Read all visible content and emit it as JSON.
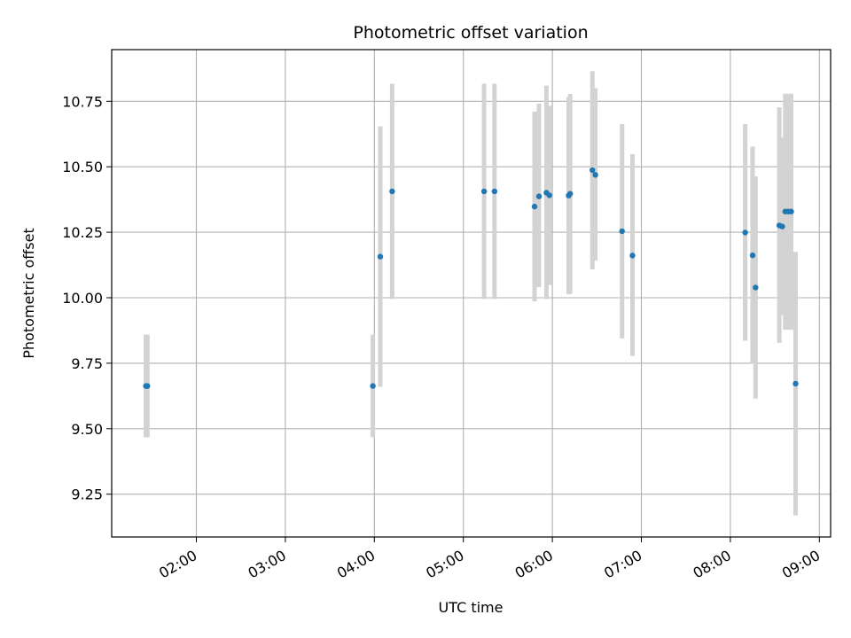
{
  "chart_data": {
    "type": "scatter",
    "title": "Photometric offset variation",
    "xlabel": "UTC time",
    "ylabel": "Photometric offset",
    "x_ticks": [
      "02:00",
      "03:00",
      "04:00",
      "05:00",
      "06:00",
      "07:00",
      "08:00",
      "09:00"
    ],
    "x_tick_values": [
      120,
      180,
      240,
      300,
      360,
      420,
      480,
      540
    ],
    "y_ticks": [
      "9.25",
      "9.50",
      "9.75",
      "10.00",
      "10.25",
      "10.50",
      "10.75"
    ],
    "y_tick_values": [
      9.25,
      9.5,
      9.75,
      10.0,
      10.25,
      10.5,
      10.75
    ],
    "grid": true,
    "series": [
      {
        "color": "#1f77b4",
        "error_color": "#d3d3d3",
        "points": [
          {
            "t": "01:26",
            "y": 9.663,
            "lo": 9.467,
            "hi": 9.859
          },
          {
            "t": "01:27",
            "y": 9.663,
            "lo": 9.467,
            "hi": 9.859
          },
          {
            "t": "03:59",
            "y": 9.663,
            "lo": 9.467,
            "hi": 9.859
          },
          {
            "t": "04:04",
            "y": 10.157,
            "lo": 9.66,
            "hi": 10.654
          },
          {
            "t": "04:12",
            "y": 10.406,
            "lo": 9.995,
            "hi": 10.817
          },
          {
            "t": "05:14",
            "y": 10.406,
            "lo": 9.995,
            "hi": 10.817
          },
          {
            "t": "05:21",
            "y": 10.406,
            "lo": 9.995,
            "hi": 10.817
          },
          {
            "t": "05:48",
            "y": 10.348,
            "lo": 9.986,
            "hi": 10.711
          },
          {
            "t": "05:51",
            "y": 10.387,
            "lo": 10.04,
            "hi": 10.741
          },
          {
            "t": "05:56",
            "y": 10.401,
            "lo": 9.995,
            "hi": 10.81
          },
          {
            "t": "05:58",
            "y": 10.391,
            "lo": 10.049,
            "hi": 10.733
          },
          {
            "t": "06:11",
            "y": 10.39,
            "lo": 10.013,
            "hi": 10.766
          },
          {
            "t": "06:12",
            "y": 10.397,
            "lo": 10.015,
            "hi": 10.778
          },
          {
            "t": "06:27",
            "y": 10.487,
            "lo": 10.108,
            "hi": 10.865
          },
          {
            "t": "06:29",
            "y": 10.469,
            "lo": 10.142,
            "hi": 10.8
          },
          {
            "t": "06:47",
            "y": 10.254,
            "lo": 9.845,
            "hi": 10.663
          },
          {
            "t": "06:54",
            "y": 10.161,
            "lo": 9.778,
            "hi": 10.548
          },
          {
            "t": "08:10",
            "y": 10.249,
            "lo": 9.836,
            "hi": 10.663
          },
          {
            "t": "08:15",
            "y": 10.162,
            "lo": 9.748,
            "hi": 10.577
          },
          {
            "t": "08:17",
            "y": 10.039,
            "lo": 9.615,
            "hi": 10.463
          },
          {
            "t": "08:33",
            "y": 10.276,
            "lo": 9.828,
            "hi": 10.727
          },
          {
            "t": "08:35",
            "y": 10.272,
            "lo": 9.934,
            "hi": 10.611
          },
          {
            "t": "08:37",
            "y": 10.329,
            "lo": 9.878,
            "hi": 10.779
          },
          {
            "t": "08:39",
            "y": 10.329,
            "lo": 9.878,
            "hi": 10.779
          },
          {
            "t": "08:41",
            "y": 10.329,
            "lo": 9.878,
            "hi": 10.779
          },
          {
            "t": "08:44",
            "y": 9.672,
            "lo": 9.169,
            "hi": 10.175
          }
        ]
      }
    ]
  }
}
